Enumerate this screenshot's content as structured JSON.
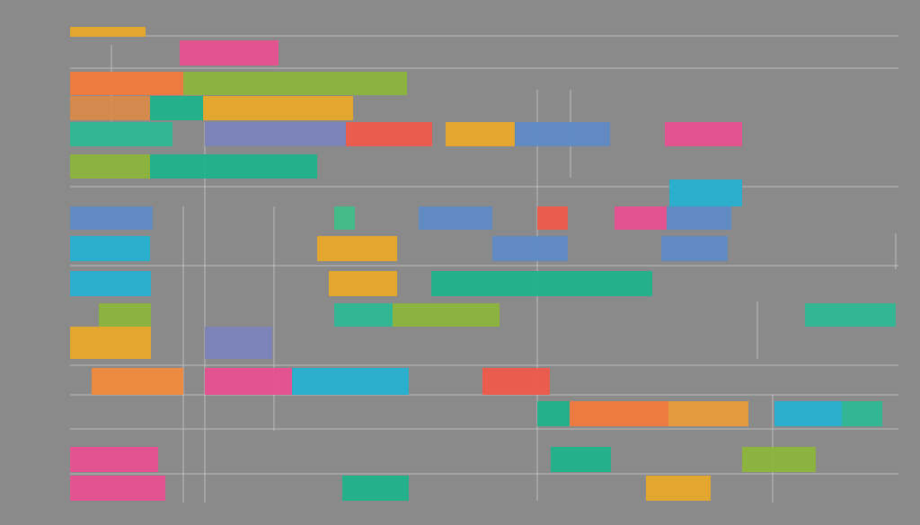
{
  "chart_data": {
    "type": "gantt",
    "xlim": [
      0,
      930
    ],
    "rows": [
      {
        "bars": [
          {
            "start": 0,
            "end": 84,
            "color": "#e8a92a"
          }
        ]
      },
      {
        "bars": [
          {
            "start": 122,
            "end": 232,
            "color": "#e8508f"
          }
        ]
      },
      {
        "bars": [
          {
            "start": 0,
            "end": 126,
            "color": "#f07a3c"
          },
          {
            "start": 126,
            "end": 375,
            "color": "#8cb43c"
          }
        ]
      },
      {
        "bars": [
          {
            "start": 0,
            "end": 89,
            "color": "#d98a4a"
          },
          {
            "start": 89,
            "end": 148,
            "color": "#1fb28a"
          },
          {
            "start": 148,
            "end": 315,
            "color": "#e8a92a"
          }
        ]
      },
      {
        "bars": [
          {
            "start": 0,
            "end": 114,
            "color": "#2db894"
          },
          {
            "start": 150,
            "end": 307,
            "color": "#7b83b8"
          },
          {
            "start": 307,
            "end": 403,
            "color": "#ef5a4a"
          },
          {
            "start": 418,
            "end": 495,
            "color": "#e8a92a"
          },
          {
            "start": 495,
            "end": 601,
            "color": "#5f8ac6"
          },
          {
            "start": 662,
            "end": 748,
            "color": "#e8508f"
          }
        ]
      },
      {
        "bars": [
          {
            "start": 0,
            "end": 89,
            "color": "#8cb43c"
          },
          {
            "start": 89,
            "end": 275,
            "color": "#1fb28a"
          }
        ]
      },
      {
        "bars": [
          {
            "start": 667,
            "end": 748,
            "color": "#26afd0"
          }
        ]
      },
      {
        "bars": [
          {
            "start": 0,
            "end": 92,
            "color": "#5f8ac6"
          },
          {
            "start": 294,
            "end": 317,
            "color": "#3fbf8a"
          },
          {
            "start": 388,
            "end": 470,
            "color": "#5f8ac6"
          },
          {
            "start": 520,
            "end": 554,
            "color": "#ef5a4a"
          },
          {
            "start": 606,
            "end": 664,
            "color": "#e8508f"
          },
          {
            "start": 664,
            "end": 736,
            "color": "#5f8ac6"
          }
        ]
      },
      {
        "bars": [
          {
            "start": 0,
            "end": 89,
            "color": "#26afd0"
          },
          {
            "start": 275,
            "end": 364,
            "color": "#e8a92a"
          },
          {
            "start": 470,
            "end": 554,
            "color": "#5f8ac6"
          },
          {
            "start": 658,
            "end": 732,
            "color": "#5f8ac6"
          }
        ]
      },
      {
        "bars": [
          {
            "start": 0,
            "end": 90,
            "color": "#26afd0"
          },
          {
            "start": 288,
            "end": 364,
            "color": "#e8a92a"
          },
          {
            "start": 402,
            "end": 648,
            "color": "#1fb28a"
          }
        ]
      },
      {
        "bars": [
          {
            "start": 32,
            "end": 90,
            "color": "#8cb43c"
          },
          {
            "start": 294,
            "end": 359,
            "color": "#2db894"
          },
          {
            "start": 359,
            "end": 478,
            "color": "#8cb43c"
          },
          {
            "start": 818,
            "end": 919,
            "color": "#2db894"
          }
        ]
      },
      {
        "bars": [
          {
            "start": 0,
            "end": 90,
            "color": "#e8a92a"
          },
          {
            "start": 150,
            "end": 225,
            "color": "#7b83b8"
          }
        ]
      },
      {
        "bars": [
          {
            "start": 24,
            "end": 126,
            "color": "#f08a3c"
          },
          {
            "start": 150,
            "end": 247,
            "color": "#e8508f"
          },
          {
            "start": 247,
            "end": 377,
            "color": "#26afd0"
          },
          {
            "start": 459,
            "end": 534,
            "color": "#ef5a4a"
          }
        ]
      },
      {
        "bars": [
          {
            "start": 520,
            "end": 556,
            "color": "#1fb28a"
          },
          {
            "start": 556,
            "end": 666,
            "color": "#f07a3c"
          },
          {
            "start": 666,
            "end": 755,
            "color": "#e89a3a"
          },
          {
            "start": 784,
            "end": 859,
            "color": "#26afd0"
          },
          {
            "start": 859,
            "end": 904,
            "color": "#2db894"
          }
        ]
      },
      {
        "bars": [
          {
            "start": 0,
            "end": 98,
            "color": "#e8508f"
          },
          {
            "start": 535,
            "end": 602,
            "color": "#1fb28a"
          },
          {
            "start": 748,
            "end": 830,
            "color": "#8cb43c"
          }
        ]
      },
      {
        "bars": [
          {
            "start": 0,
            "end": 106,
            "color": "#e8508f"
          },
          {
            "start": 303,
            "end": 377,
            "color": "#1fb28a"
          },
          {
            "start": 641,
            "end": 713,
            "color": "#e8a92a"
          }
        ]
      }
    ]
  }
}
